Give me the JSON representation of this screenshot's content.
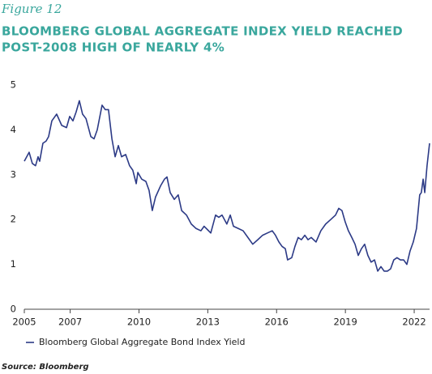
{
  "chart_data": {
    "type": "line",
    "figure_label": "Figure 12",
    "title_lines": [
      "BLOOMBERG GLOBAL AGGREGATE INDEX YIELD REACHED",
      "POST-2008 HIGH OF NEARLY 4%"
    ],
    "source": "Source: Bloomberg",
    "x": [
      2005.0,
      2005.21,
      2005.35,
      2005.49,
      2005.6,
      2005.67,
      2005.81,
      2005.95,
      2006.06,
      2006.2,
      2006.41,
      2006.63,
      2006.84,
      2006.98,
      2007.12,
      2007.26,
      2007.4,
      2007.54,
      2007.69,
      2007.9,
      2008.04,
      2008.18,
      2008.39,
      2008.53,
      2008.67,
      2008.82,
      2008.96,
      2009.1,
      2009.24,
      2009.42,
      2009.59,
      2009.73,
      2009.88,
      2009.95,
      2010.12,
      2010.3,
      2010.44,
      2010.58,
      2010.72,
      2010.94,
      2011.11,
      2011.22,
      2011.36,
      2011.54,
      2011.71,
      2011.86,
      2012.07,
      2012.28,
      2012.49,
      2012.7,
      2012.84,
      2013.13,
      2013.34,
      2013.48,
      2013.62,
      2013.83,
      2013.98,
      2014.12,
      2014.33,
      2014.54,
      2014.75,
      2014.96,
      2015.18,
      2015.39,
      2015.6,
      2015.81,
      2015.95,
      2016.1,
      2016.24,
      2016.38,
      2016.48,
      2016.66,
      2016.8,
      2016.94,
      2017.08,
      2017.23,
      2017.37,
      2017.51,
      2017.72,
      2017.93,
      2018.14,
      2018.36,
      2018.57,
      2018.71,
      2018.85,
      2018.99,
      2019.13,
      2019.28,
      2019.42,
      2019.56,
      2019.7,
      2019.84,
      2019.98,
      2020.12,
      2020.27,
      2020.41,
      2020.55,
      2020.69,
      2020.83,
      2020.97,
      2021.11,
      2021.25,
      2021.4,
      2021.54,
      2021.68,
      2021.82,
      2021.96,
      2022.1,
      2022.24,
      2022.31,
      2022.39,
      2022.46,
      2022.56,
      2022.67
    ],
    "series": [
      {
        "name": "Bloomberg Global Aggregate Bond Index Yield",
        "color": "#2c3a86",
        "values": [
          3.3,
          3.5,
          3.25,
          3.2,
          3.4,
          3.3,
          3.7,
          3.75,
          3.85,
          4.2,
          4.35,
          4.1,
          4.05,
          4.3,
          4.2,
          4.4,
          4.65,
          4.35,
          4.25,
          3.85,
          3.8,
          4.0,
          4.55,
          4.45,
          4.45,
          3.8,
          3.4,
          3.65,
          3.4,
          3.45,
          3.2,
          3.1,
          2.8,
          3.05,
          2.9,
          2.85,
          2.65,
          2.2,
          2.5,
          2.75,
          2.9,
          2.95,
          2.6,
          2.45,
          2.55,
          2.2,
          2.1,
          1.9,
          1.8,
          1.75,
          1.85,
          1.7,
          2.1,
          2.05,
          2.1,
          1.9,
          2.1,
          1.85,
          1.8,
          1.75,
          1.6,
          1.45,
          1.55,
          1.65,
          1.7,
          1.75,
          1.65,
          1.5,
          1.4,
          1.35,
          1.1,
          1.15,
          1.4,
          1.6,
          1.55,
          1.65,
          1.55,
          1.6,
          1.5,
          1.75,
          1.9,
          2.0,
          2.1,
          2.25,
          2.2,
          1.95,
          1.75,
          1.6,
          1.45,
          1.2,
          1.35,
          1.45,
          1.2,
          1.05,
          1.1,
          0.85,
          0.95,
          0.85,
          0.85,
          0.9,
          1.1,
          1.15,
          1.1,
          1.1,
          1.0,
          1.3,
          1.5,
          1.8,
          2.55,
          2.6,
          2.9,
          2.6,
          3.2,
          3.7
        ]
      }
    ],
    "xlim": [
      2005,
      2022.67
    ],
    "ylim": [
      0,
      5
    ],
    "xticks": [
      2005,
      2007,
      2010,
      2013,
      2016,
      2019,
      2022
    ],
    "yticks": [
      0,
      1,
      2,
      3,
      4,
      5
    ],
    "grid": false
  }
}
